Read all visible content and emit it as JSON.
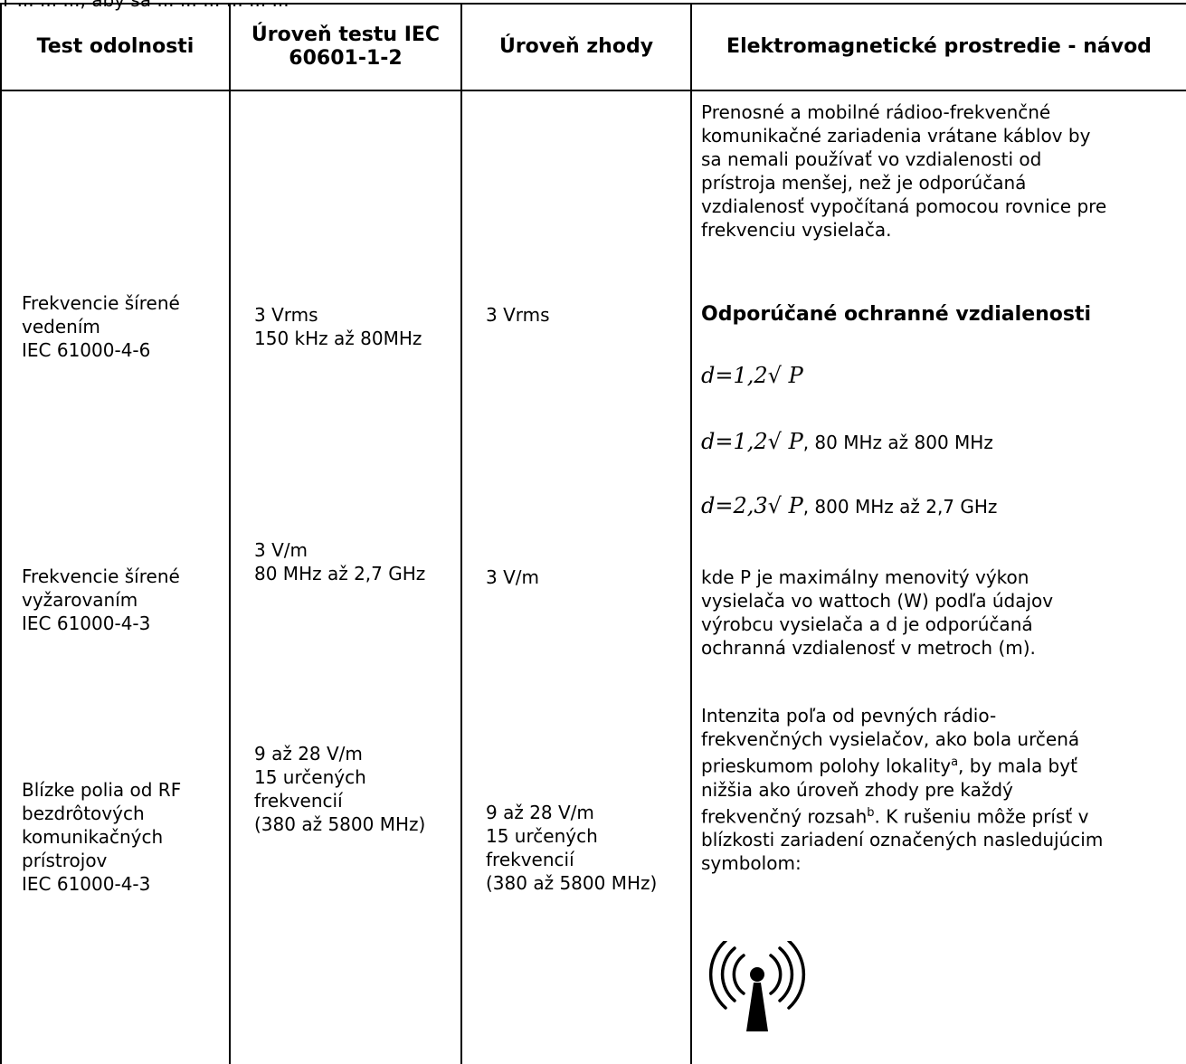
{
  "intro_text": "Y ... ... ..., aby sa ... ... ... ... ... ...",
  "table": {
    "headers": [
      "Test odolnosti",
      "Úroveň testu IEC 60601-1-2",
      "Úroveň zhody",
      "Elektromagnetické prostredie - návod"
    ],
    "col1": {
      "conducted": [
        "Frekvencie šírené",
        "vedením",
        "IEC 61000-4-6"
      ],
      "radiated": [
        "Frekvencie šírené",
        "vyžarovaním",
        "IEC 61000-4-3"
      ],
      "near_fields": [
        "Blízke polia od RF",
        "bezdrôtových",
        "komunikačných",
        "prístrojov",
        "IEC 61000-4-3"
      ]
    },
    "col2": {
      "conducted": [
        "3 Vrms",
        "150 kHz až 80MHz"
      ],
      "radiated": [
        "3 V/m",
        "80 MHz až 2,7 GHz"
      ],
      "near_fields": [
        "9 až 28 V/m",
        "15 určených",
        "frekvencií",
        "(380 až 5800 MHz)"
      ]
    },
    "col3": {
      "conducted": [
        "3 Vrms"
      ],
      "radiated": [
        "3 V/m"
      ],
      "near_fields": [
        "9 až 28 V/m",
        "15 určených",
        "frekvencií",
        "(380 až 5800 MHz)"
      ]
    },
    "col4": {
      "paragraph1": [
        "Prenosné a mobilné rádioo-frekvenčné",
        "komunikačné zariadenia vrátane káblov by",
        "sa nemali používať vo vzdialenosti od",
        "prístroja menšej, než je odporúčaná",
        "vzdialenosť vypočítaná pomocou rovnice pre",
        "frekvenciu vysielača."
      ],
      "subheading": "Odporúčané ochranné vzdialenosti",
      "formula1": "d=1,2√ P",
      "formula2": "d=1,2√ P",
      "formula2_suffix": ", 80 MHz až 800 MHz",
      "formula3": "d=2,3√ P",
      "formula3_suffix": ", 800 MHz až 2,7 GHz",
      "paragraph2": [
        "kde P je maximálny menovitý výkon",
        "vysielača vo wattoch (W) podľa údajov",
        "výrobcu vysielača a d je odporúčaná",
        "ochranná vzdialenosť v metroch (m)."
      ],
      "p3_line1": "Intenzita poľa od pevných rádio-",
      "p3_line2": "frekvenčných vysielačov, ako bola určená",
      "p3_line3_a": "prieskumom polohy lokality",
      "p3_line3_sup": "a",
      "p3_line3_b": ", by mala byť",
      "p3_line4": "nižšia ako úroveň zhody pre každý",
      "p3_line5_a": "frekvenčný rozsah",
      "p3_line5_sup": "b",
      "p3_line5_b": ". K rušeniu môže prísť v",
      "p3_line6": "blízkosti zariadení označených nasledujúcim",
      "p3_line7": "symbolom:",
      "symbol_icon": "non-ionizing-radiation-icon"
    }
  }
}
